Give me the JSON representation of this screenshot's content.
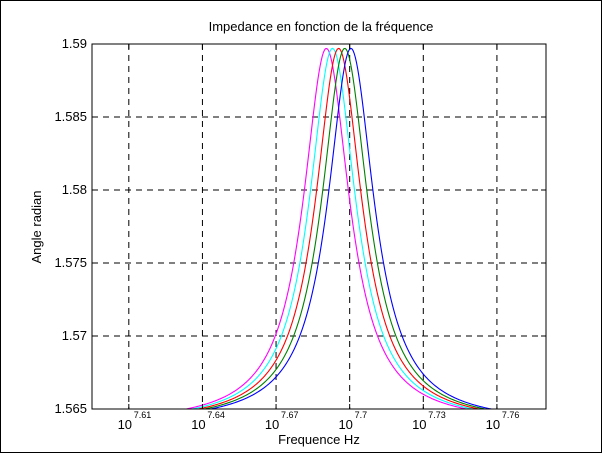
{
  "chart_data": {
    "type": "line",
    "title": "Impedance en fonction de la fréquence",
    "xlabel": "Frequence Hz",
    "ylabel": "Angle radian",
    "x_scale": "log10",
    "xlim_exponent": [
      7.595,
      7.78
    ],
    "ylim": [
      1.565,
      1.59
    ],
    "x_tick_exponents": [
      "7.61",
      "7.64",
      "7.67",
      "7.7",
      "7.73",
      "7.76"
    ],
    "x_tick_base": "10",
    "y_ticks": [
      "1.565",
      "1.57",
      "1.575",
      "1.58",
      "1.585",
      "1.59"
    ],
    "grid": true,
    "grid_style": "dashed",
    "legend": "none",
    "series": [
      {
        "color": "#ff00ff",
        "peak_x_exponent": 7.6905,
        "peak_y": 1.5897,
        "width": 0.0115
      },
      {
        "color": "#00ffff",
        "peak_x_exponent": 7.693,
        "peak_y": 1.5897,
        "width": 0.0115
      },
      {
        "color": "#ff0000",
        "peak_x_exponent": 7.6955,
        "peak_y": 1.5897,
        "width": 0.0115
      },
      {
        "color": "#008000",
        "peak_x_exponent": 7.698,
        "peak_y": 1.5897,
        "width": 0.0115
      },
      {
        "color": "#0000ff",
        "peak_x_exponent": 7.7005,
        "peak_y": 1.5897,
        "width": 0.0115
      }
    ],
    "baseline_y": 1.564
  }
}
